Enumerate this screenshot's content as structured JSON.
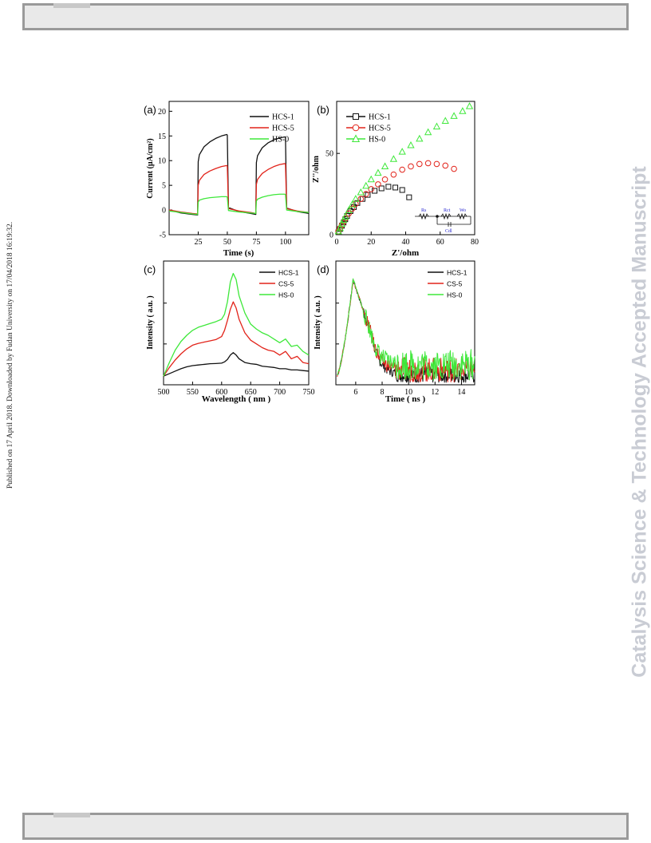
{
  "journal_banner": "Catalysis Science & Technology Accepted Manuscript",
  "published_note": "Published on 17 April 2018. Downloaded by Fudan University on 17/04/2018 16:19:32.",
  "colors": {
    "black": "#111111",
    "red": "#e2231a",
    "green": "#3ee83a",
    "blue": "#2a2ad0"
  },
  "chart_data": [
    {
      "panel": "(a)",
      "type": "line",
      "xlabel": "Time (s)",
      "ylabel": "Current (μA/cm²)",
      "xlim": [
        0,
        120
      ],
      "ylim": [
        -5,
        22
      ],
      "xticks": [
        25,
        50,
        75,
        100
      ],
      "yticks": [
        -5,
        0,
        5,
        10,
        15,
        20
      ],
      "legend_position": "top-right",
      "series": [
        {
          "name": "HCS-1",
          "color": "#111111",
          "x": [
            0,
            10,
            20,
            24.5,
            25,
            26,
            30,
            35,
            40,
            45,
            49.5,
            50,
            51,
            60,
            70,
            74.5,
            75,
            76,
            80,
            85,
            90,
            95,
            99.5,
            100,
            101,
            110,
            120
          ],
          "y": [
            0,
            -0.6,
            -0.9,
            -1.0,
            9.8,
            11.2,
            12.8,
            13.8,
            14.5,
            15.0,
            15.3,
            15.2,
            0.5,
            -0.3,
            -0.7,
            -0.9,
            9.6,
            11.0,
            12.6,
            13.6,
            14.2,
            14.6,
            14.8,
            14.7,
            0.4,
            -0.3,
            -0.7
          ]
        },
        {
          "name": "HCS-5",
          "color": "#e2231a",
          "x": [
            0,
            10,
            20,
            24.5,
            25,
            26,
            30,
            35,
            40,
            45,
            49.5,
            50,
            51,
            60,
            70,
            74.5,
            75,
            76,
            80,
            85,
            90,
            95,
            99.5,
            100,
            101,
            110,
            120
          ],
          "y": [
            0,
            -0.4,
            -0.7,
            -0.8,
            5.0,
            6.0,
            7.2,
            7.9,
            8.4,
            8.8,
            9.0,
            8.9,
            0.3,
            -0.2,
            -0.5,
            -0.7,
            5.2,
            6.2,
            7.4,
            8.2,
            8.8,
            9.2,
            9.4,
            9.3,
            0.3,
            -0.2,
            -0.5
          ]
        },
        {
          "name": "HS-0",
          "color": "#3ee83a",
          "x": [
            0,
            10,
            20,
            24.5,
            25,
            26,
            30,
            35,
            40,
            45,
            49.5,
            50,
            51,
            60,
            70,
            74.5,
            75,
            76,
            80,
            85,
            90,
            95,
            99.5,
            100,
            101,
            110,
            120
          ],
          "y": [
            -0.2,
            -0.5,
            -0.8,
            -0.9,
            1.6,
            2.0,
            2.3,
            2.5,
            2.6,
            2.7,
            2.7,
            2.6,
            -0.1,
            -0.4,
            -0.6,
            -0.7,
            1.8,
            2.2,
            2.6,
            2.9,
            3.1,
            3.2,
            3.2,
            3.1,
            0.0,
            -0.3,
            -0.5
          ]
        }
      ]
    },
    {
      "panel": "(b)",
      "type": "scatter",
      "xlabel": "Z'/ohm",
      "ylabel": "Z''/ohm",
      "xlim": [
        0,
        80
      ],
      "ylim": [
        0,
        82
      ],
      "xticks": [
        0,
        20,
        40,
        60,
        80
      ],
      "yticks": [
        0,
        50
      ],
      "legend_position": "top-left",
      "circuit_labels": {
        "rs": "Rs",
        "rct": "Rct",
        "wo": "Wo",
        "cdl": "Cdl"
      },
      "series": [
        {
          "name": "HCS-1",
          "color": "#111111",
          "marker": "square",
          "x": [
            0.5,
            1,
            2,
            3,
            4,
            5,
            6,
            8,
            10,
            12,
            15,
            18,
            22,
            26,
            30,
            34,
            38,
            42
          ],
          "y": [
            0.5,
            1.5,
            3.5,
            5.5,
            7.5,
            9.5,
            11.5,
            14.5,
            17,
            19.5,
            22,
            24.5,
            27,
            28.5,
            29.5,
            29,
            27.5,
            23
          ]
        },
        {
          "name": "HCS-5",
          "color": "#e2231a",
          "marker": "circle",
          "x": [
            0.5,
            1,
            2,
            3,
            4,
            5,
            7,
            9,
            11,
            14,
            17,
            20,
            24,
            28,
            33,
            38,
            43,
            48,
            53,
            58,
            63,
            68
          ],
          "y": [
            0.5,
            2,
            4,
            6,
            8,
            10,
            13,
            16,
            19,
            22,
            25,
            28,
            31,
            34,
            37,
            40,
            42,
            43.5,
            44,
            43.5,
            42.5,
            40.5
          ]
        },
        {
          "name": "HS-0",
          "color": "#3ee83a",
          "marker": "triangle",
          "x": [
            0.5,
            1,
            2,
            3,
            4,
            5,
            7,
            9,
            11,
            14,
            17,
            20,
            24,
            28,
            33,
            38,
            43,
            48,
            53,
            58,
            63,
            68,
            73,
            77
          ],
          "y": [
            0.5,
            2,
            4,
            6.5,
            9,
            11,
            15,
            18.5,
            22,
            26,
            30,
            34,
            38,
            42,
            46.5,
            51,
            55,
            59,
            63,
            66.5,
            70,
            73,
            76,
            79
          ]
        }
      ]
    },
    {
      "panel": "(c)",
      "type": "line",
      "xlabel": "Wavelength ( nm )",
      "ylabel": "Intensity ( a.u. )",
      "xlim": [
        500,
        750
      ],
      "ylim": [
        0,
        100
      ],
      "xticks": [
        500,
        550,
        600,
        650,
        700,
        750
      ],
      "legend_position": "top-right",
      "series": [
        {
          "name": "HCS-1",
          "color": "#111111",
          "x": [
            500,
            510,
            520,
            530,
            540,
            550,
            560,
            570,
            580,
            590,
            600,
            605,
            610,
            615,
            620,
            625,
            630,
            640,
            650,
            660,
            670,
            680,
            690,
            700,
            710,
            720,
            730,
            740,
            750
          ],
          "y": [
            7,
            9,
            11,
            13,
            14.5,
            15.5,
            16,
            16.5,
            17,
            17.2,
            17.5,
            18.5,
            20.5,
            24,
            26,
            24,
            21,
            18,
            17,
            16.5,
            15,
            14.5,
            14,
            13,
            13,
            12,
            12,
            11.5,
            11
          ]
        },
        {
          "name": "CS-5",
          "color": "#e2231a",
          "x": [
            500,
            510,
            520,
            530,
            540,
            550,
            560,
            570,
            580,
            590,
            600,
            605,
            610,
            615,
            620,
            625,
            630,
            640,
            650,
            660,
            670,
            680,
            690,
            700,
            710,
            720,
            730,
            740,
            750
          ],
          "y": [
            7,
            14,
            20,
            25,
            29,
            32,
            33.5,
            34.5,
            35.5,
            36.5,
            39,
            44,
            52,
            61,
            67,
            62,
            53,
            42,
            36,
            33,
            30,
            28,
            27,
            24,
            27,
            21,
            23,
            18,
            17
          ]
        },
        {
          "name": "HS-0",
          "color": "#3ee83a",
          "x": [
            500,
            510,
            520,
            530,
            540,
            550,
            560,
            570,
            580,
            590,
            600,
            605,
            610,
            615,
            620,
            625,
            630,
            640,
            650,
            660,
            670,
            680,
            690,
            700,
            710,
            720,
            730,
            740,
            750
          ],
          "y": [
            7,
            18,
            28,
            35,
            40,
            44,
            46.5,
            48,
            49.5,
            51,
            53,
            57,
            67,
            83,
            90,
            85,
            72,
            58,
            49,
            45,
            42,
            40,
            37,
            34,
            37,
            31,
            32,
            27,
            24
          ]
        }
      ]
    },
    {
      "panel": "(d)",
      "type": "line",
      "xlabel": "Time ( ns )",
      "ylabel": "Intensity ( a.u. )",
      "xlim": [
        4.5,
        15
      ],
      "ylim": [
        0,
        100
      ],
      "xticks": [
        6,
        8,
        10,
        12,
        14
      ],
      "legend_position": "top-right",
      "series": [
        {
          "name": "HCS-1",
          "color": "#111111"
        },
        {
          "name": "CS-5",
          "color": "#e2231a"
        },
        {
          "name": "HS-0",
          "color": "#3ee83a"
        }
      ]
    }
  ]
}
